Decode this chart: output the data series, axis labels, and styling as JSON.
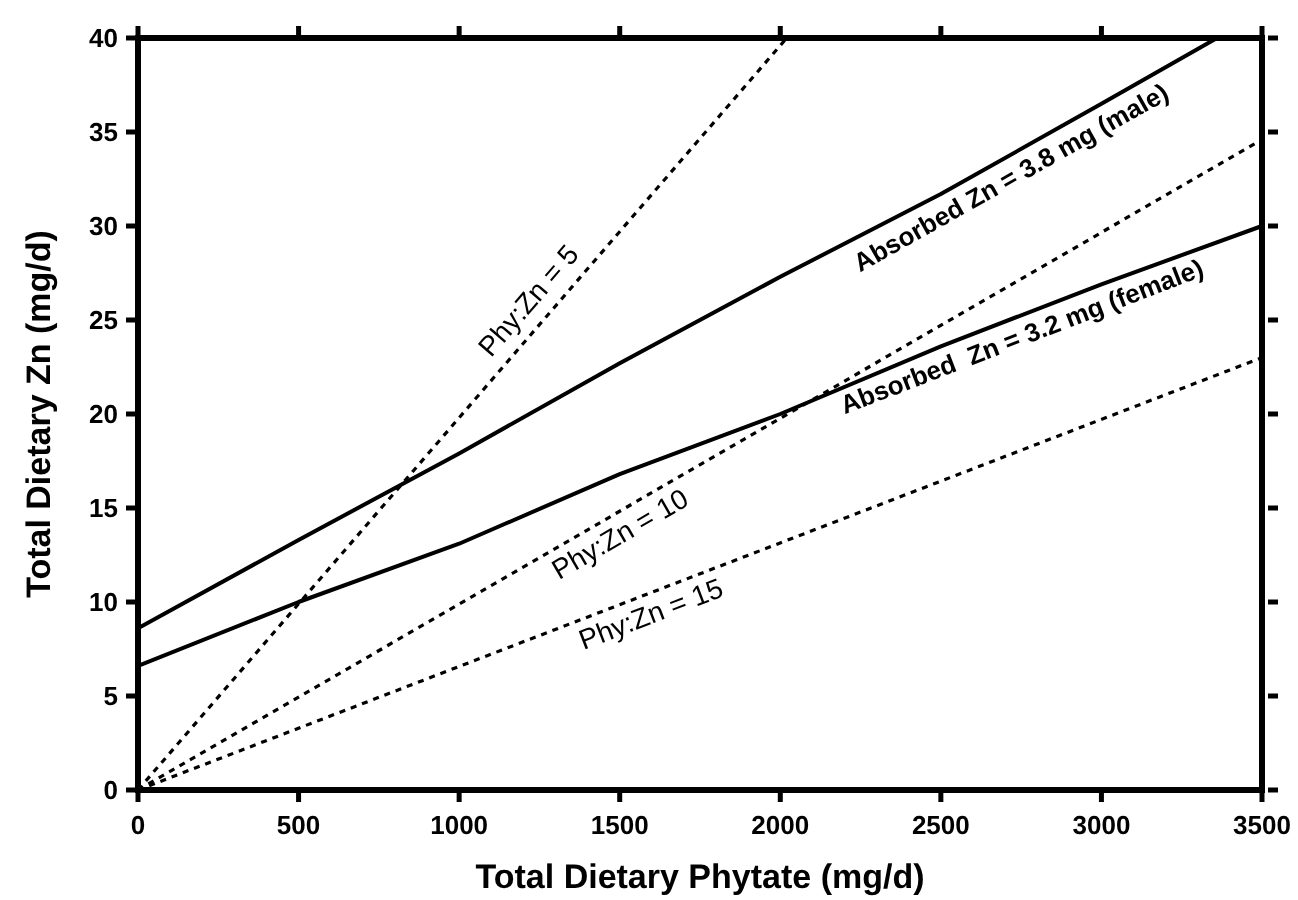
{
  "chart_data": {
    "type": "line",
    "xlabel": "Total Dietary Phytate (mg/d)",
    "ylabel": "Total Dietary Zn (mg/d)",
    "xlim": [
      0,
      3500
    ],
    "xticks": [
      0,
      500,
      1000,
      1500,
      2000,
      2500,
      3000,
      3500
    ],
    "ylim": [
      0,
      40
    ],
    "yticks": [
      0,
      5,
      10,
      15,
      20,
      25,
      30,
      35,
      40
    ],
    "series": [
      {
        "name": "Absorbed Zn = 3.8 mg (male)",
        "color": "#000000",
        "line_style": "solid",
        "x": [
          0,
          500,
          1000,
          1500,
          2000,
          2500,
          3000,
          3360
        ],
        "values": [
          8.6,
          13.3,
          17.9,
          22.7,
          27.3,
          31.7,
          36.5,
          40
        ]
      },
      {
        "name": "Absorbed  Zn = 3.2 mg (female)",
        "color": "#000000",
        "line_style": "solid",
        "x": [
          0,
          500,
          1000,
          1500,
          2000,
          2500,
          3000,
          3500
        ],
        "values": [
          6.6,
          10.0,
          13.1,
          16.8,
          20.0,
          23.6,
          26.9,
          30.0
        ]
      },
      {
        "name": "Phy:Zn = 5",
        "color": "#000000",
        "line_style": "dotted",
        "x": [
          0,
          2020
        ],
        "values": [
          0,
          40
        ]
      },
      {
        "name": "Phy:Zn = 10",
        "color": "#000000",
        "line_style": "dotted",
        "x": [
          0,
          3500
        ],
        "values": [
          0,
          34.6
        ]
      },
      {
        "name": "Phy:Zn = 15",
        "color": "#000000",
        "line_style": "dotted",
        "x": [
          0,
          3500
        ],
        "values": [
          0,
          23.0
        ]
      }
    ]
  }
}
